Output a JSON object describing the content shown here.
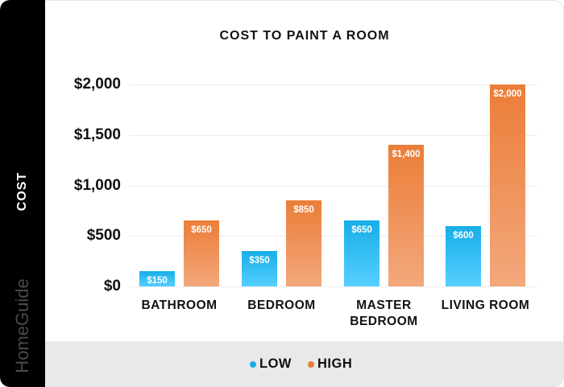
{
  "chart_data": {
    "type": "bar",
    "title": "COST TO PAINT A ROOM",
    "xlabel": "",
    "ylabel": "COST",
    "ylim": [
      0,
      2000
    ],
    "yticks": [
      "$0",
      "$500",
      "$1,000",
      "$1,500",
      "$2,000"
    ],
    "ytick_values": [
      0,
      500,
      1000,
      1500,
      2000
    ],
    "grid": true,
    "legend_position": "bottom",
    "categories": [
      "BATHROOM",
      "BEDROOM",
      "MASTER BEDROOM",
      "LIVING ROOM"
    ],
    "category_labels_display": [
      [
        "BATHROOM"
      ],
      [
        "BEDROOM"
      ],
      [
        "MASTER",
        "BEDROOM"
      ],
      [
        "LIVING ROOM"
      ]
    ],
    "series": [
      {
        "name": "LOW",
        "color": "#17aee8",
        "values": [
          150,
          350,
          650,
          600
        ],
        "labels": [
          "$150",
          "$350",
          "$650",
          "$600"
        ]
      },
      {
        "name": "HIGH",
        "color": "#eb7d38",
        "values": [
          650,
          850,
          1400,
          2000
        ],
        "labels": [
          "$650",
          "$850",
          "$1,400",
          "$2,000"
        ]
      }
    ]
  },
  "branding": {
    "watermark": "HomeGuide"
  },
  "legend": [
    {
      "label": "LOW",
      "color": "#17aee8"
    },
    {
      "label": "HIGH",
      "color": "#eb7d38"
    }
  ]
}
